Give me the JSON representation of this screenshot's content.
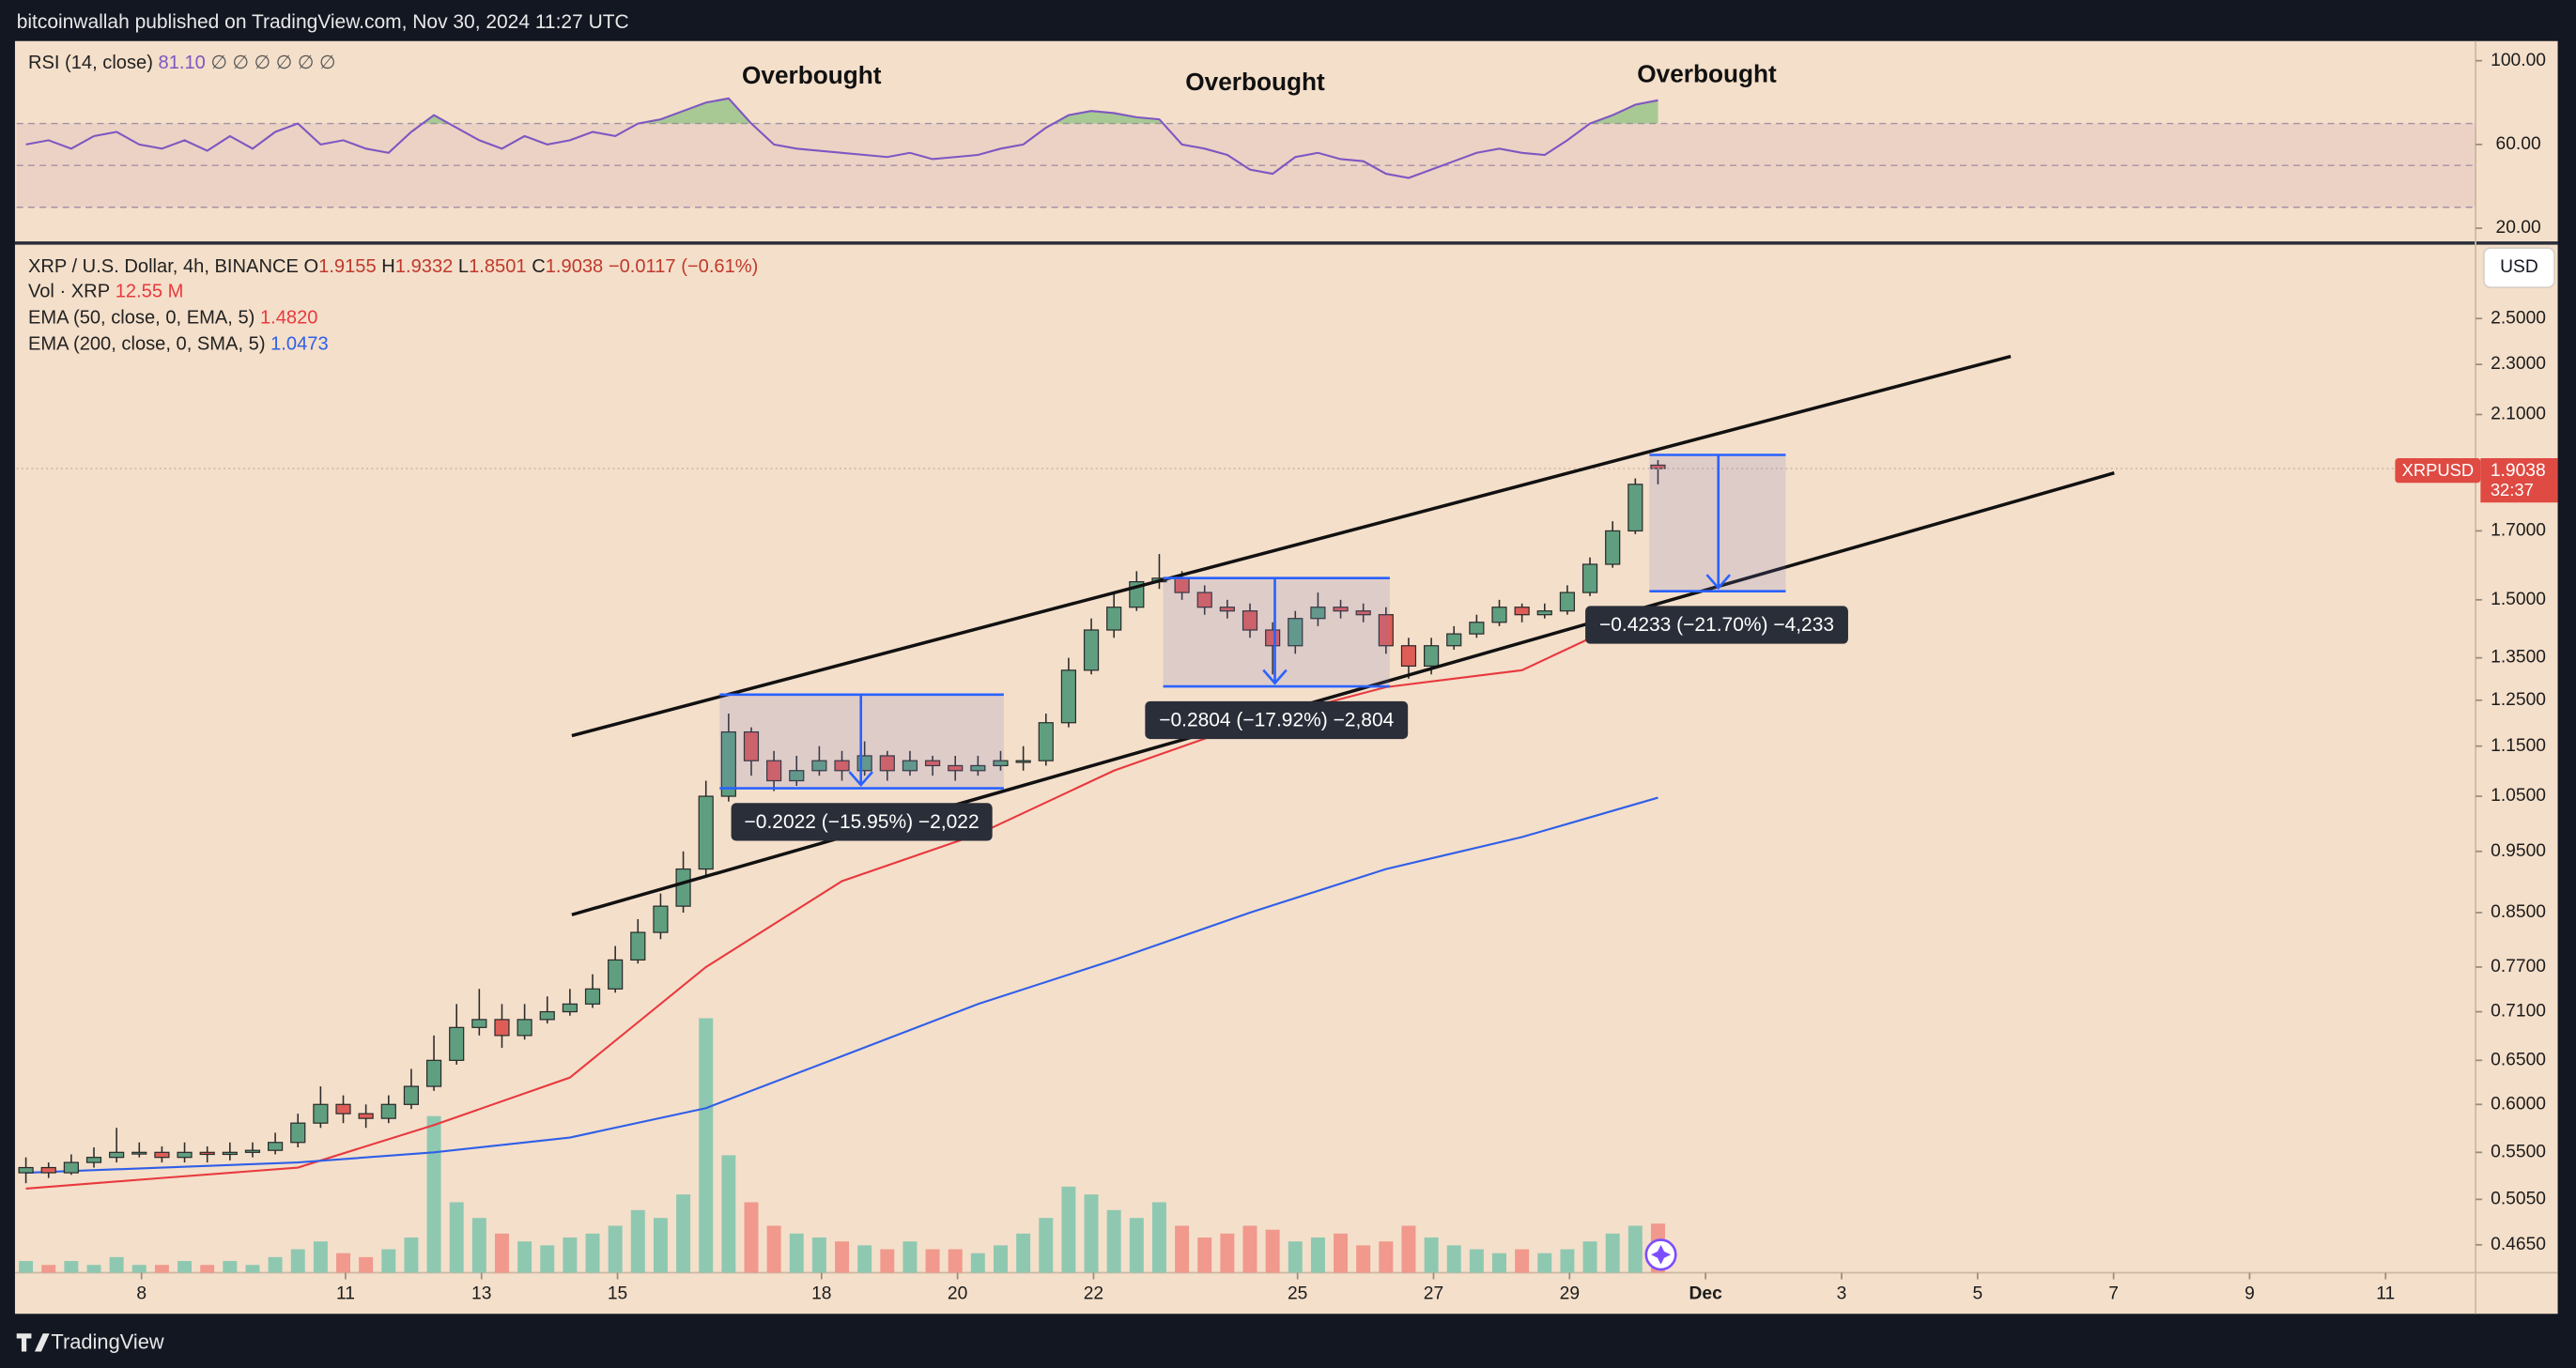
{
  "header": {
    "publisher": "bitcoinwallah published on TradingView.com, Nov 30, 2024 11:27 UTC"
  },
  "footer": {
    "brand": "TradingView"
  },
  "rsi_legend": {
    "name": "RSI (14, close)",
    "value": "81.10",
    "extra": "∅ ∅ ∅ ∅ ∅ ∅"
  },
  "legend": {
    "symbol": "XRP / U.S. Dollar, 4h, BINANCE",
    "ohlc": [
      {
        "k": "O",
        "v": "1.9155"
      },
      {
        "k": "H",
        "v": "1.9332"
      },
      {
        "k": "L",
        "v": "1.8501"
      },
      {
        "k": "C",
        "v": "1.9038"
      }
    ],
    "change": "−0.0117 (−0.61%)",
    "volume": {
      "name": "Vol · XRP",
      "value": "12.55 M"
    },
    "ema50": {
      "name": "EMA (50, close, 0, EMA, 5)",
      "value": "1.4820"
    },
    "ema200": {
      "name": "EMA (200, close, 0, SMA, 5)",
      "value": "1.0473"
    }
  },
  "currency": "USD",
  "price_label": {
    "symbol": "XRPUSD",
    "price": "1.9038",
    "countdown": "32:37"
  },
  "chart_data": [
    {
      "type": "candlestick",
      "open": [
        0.53,
        0.535,
        0.53,
        0.54,
        0.545,
        0.55,
        0.55,
        0.545,
        0.55,
        0.548,
        0.55,
        0.552,
        0.56,
        0.58,
        0.6,
        0.59,
        0.585,
        0.6,
        0.62,
        0.65,
        0.69,
        0.7,
        0.68,
        0.7,
        0.71,
        0.72,
        0.74,
        0.78,
        0.82,
        0.86,
        0.92,
        1.05,
        1.18,
        1.12,
        1.08,
        1.1,
        1.12,
        1.1,
        1.13,
        1.1,
        1.12,
        1.11,
        1.1,
        1.11,
        1.12,
        1.12,
        1.2,
        1.32,
        1.42,
        1.48,
        1.55,
        1.56,
        1.52,
        1.48,
        1.47,
        1.42,
        1.38,
        1.45,
        1.48,
        1.47,
        1.46,
        1.38,
        1.33,
        1.38,
        1.41,
        1.44,
        1.48,
        1.46,
        1.47,
        1.52,
        1.6,
        1.7,
        1.9155
      ],
      "high": [
        0.545,
        0.54,
        0.548,
        0.555,
        0.575,
        0.56,
        0.556,
        0.56,
        0.556,
        0.56,
        0.56,
        0.57,
        0.59,
        0.62,
        0.61,
        0.6,
        0.61,
        0.64,
        0.68,
        0.72,
        0.74,
        0.72,
        0.72,
        0.73,
        0.74,
        0.76,
        0.8,
        0.84,
        0.88,
        0.95,
        1.08,
        1.22,
        1.19,
        1.14,
        1.13,
        1.15,
        1.14,
        1.16,
        1.14,
        1.14,
        1.13,
        1.13,
        1.13,
        1.14,
        1.15,
        1.22,
        1.35,
        1.45,
        1.52,
        1.58,
        1.63,
        1.58,
        1.54,
        1.5,
        1.49,
        1.44,
        1.47,
        1.52,
        1.5,
        1.49,
        1.48,
        1.4,
        1.4,
        1.43,
        1.46,
        1.5,
        1.49,
        1.49,
        1.54,
        1.62,
        1.73,
        1.87,
        1.9332
      ],
      "low": [
        0.52,
        0.525,
        0.528,
        0.535,
        0.54,
        0.545,
        0.54,
        0.54,
        0.54,
        0.542,
        0.545,
        0.548,
        0.555,
        0.575,
        0.58,
        0.575,
        0.58,
        0.595,
        0.615,
        0.645,
        0.68,
        0.665,
        0.675,
        0.695,
        0.705,
        0.715,
        0.735,
        0.775,
        0.81,
        0.85,
        0.91,
        1.04,
        1.09,
        1.06,
        1.07,
        1.09,
        1.08,
        1.09,
        1.08,
        1.09,
        1.09,
        1.08,
        1.09,
        1.1,
        1.1,
        1.11,
        1.19,
        1.31,
        1.4,
        1.47,
        1.53,
        1.5,
        1.46,
        1.45,
        1.4,
        1.31,
        1.36,
        1.43,
        1.45,
        1.44,
        1.36,
        1.3,
        1.31,
        1.37,
        1.4,
        1.43,
        1.44,
        1.45,
        1.46,
        1.51,
        1.59,
        1.69,
        1.8501
      ],
      "close": [
        0.535,
        0.53,
        0.54,
        0.545,
        0.55,
        0.55,
        0.545,
        0.55,
        0.548,
        0.55,
        0.552,
        0.56,
        0.58,
        0.6,
        0.59,
        0.585,
        0.6,
        0.62,
        0.65,
        0.69,
        0.7,
        0.68,
        0.7,
        0.71,
        0.72,
        0.74,
        0.78,
        0.82,
        0.86,
        0.92,
        1.05,
        1.18,
        1.12,
        1.08,
        1.1,
        1.12,
        1.1,
        1.13,
        1.1,
        1.12,
        1.11,
        1.1,
        1.11,
        1.12,
        1.12,
        1.2,
        1.32,
        1.42,
        1.48,
        1.55,
        1.56,
        1.52,
        1.48,
        1.47,
        1.42,
        1.38,
        1.45,
        1.48,
        1.47,
        1.46,
        1.38,
        1.33,
        1.38,
        1.41,
        1.44,
        1.48,
        1.46,
        1.47,
        1.52,
        1.6,
        1.7,
        1.85,
        1.9038
      ],
      "volume": [
        3,
        2,
        3,
        2,
        4,
        2,
        2,
        3,
        2,
        3,
        2,
        4,
        6,
        8,
        5,
        4,
        6,
        9,
        40,
        18,
        14,
        10,
        8,
        7,
        9,
        10,
        12,
        16,
        14,
        20,
        65,
        30,
        18,
        12,
        10,
        9,
        8,
        7,
        6,
        8,
        6,
        6,
        5,
        7,
        10,
        14,
        22,
        20,
        16,
        14,
        18,
        12,
        9,
        10,
        12,
        11,
        8,
        9,
        10,
        7,
        8,
        12,
        9,
        7,
        6,
        5,
        6,
        5,
        6,
        8,
        10,
        12,
        12.55
      ],
      "up_color": "#5f9f80",
      "down_color": "#df5d57",
      "volume_up_color": "#8fc8b1",
      "volume_down_color": "#f0998c",
      "log_scale": true,
      "grid": false,
      "ylim": [
        0.442,
        2.85
      ],
      "yticks": [
        {
          "value": 2.5,
          "label": "2.5000"
        },
        {
          "value": 2.3,
          "label": "2.3000"
        },
        {
          "value": 2.1,
          "label": "2.1000"
        },
        {
          "value": 1.7,
          "label": "1.7000"
        },
        {
          "value": 1.5,
          "label": "1.5000"
        },
        {
          "value": 1.35,
          "label": "1.3500"
        },
        {
          "value": 1.25,
          "label": "1.2500"
        },
        {
          "value": 1.15,
          "label": "1.1500"
        },
        {
          "value": 1.05,
          "label": "1.0500"
        },
        {
          "value": 0.95,
          "label": "0.9500"
        },
        {
          "value": 0.85,
          "label": "0.8500"
        },
        {
          "value": 0.77,
          "label": "0.7700"
        },
        {
          "value": 0.71,
          "label": "0.7100"
        },
        {
          "value": 0.65,
          "label": "0.6500"
        },
        {
          "value": 0.6,
          "label": "0.6000"
        },
        {
          "value": 0.55,
          "label": "0.5500"
        },
        {
          "value": 0.505,
          "label": "0.5050"
        },
        {
          "value": 0.465,
          "label": "0.4650"
        }
      ],
      "xlim": [
        -0.41,
        108.07
      ],
      "xticks": [
        {
          "value": 5.1,
          "label": "8"
        },
        {
          "value": 14.1,
          "label": "11"
        },
        {
          "value": 20.1,
          "label": "13"
        },
        {
          "value": 26.1,
          "label": "15"
        },
        {
          "value": 35.1,
          "label": "18"
        },
        {
          "value": 41.1,
          "label": "20"
        },
        {
          "value": 47.1,
          "label": "22"
        },
        {
          "value": 56.1,
          "label": "25"
        },
        {
          "value": 62.1,
          "label": "27"
        },
        {
          "value": 68.1,
          "label": "29"
        },
        {
          "value": 74.1,
          "label": "Dec"
        },
        {
          "value": 80.1,
          "label": "3"
        },
        {
          "value": 86.1,
          "label": "5"
        },
        {
          "value": 92.1,
          "label": "7"
        },
        {
          "value": 98.1,
          "label": "9"
        },
        {
          "value": 104.1,
          "label": "11"
        }
      ],
      "overlays": [
        {
          "color": "#e8393e",
          "x": [
            0,
            6,
            12,
            18,
            24,
            30,
            36,
            42,
            48,
            54,
            60,
            66,
            72
          ],
          "values": [
            0.515,
            0.525,
            0.535,
            0.578,
            0.63,
            0.77,
            0.9,
            0.98,
            1.1,
            1.2,
            1.28,
            1.32,
            1.482
          ]
        },
        {
          "color": "#2f5fe8",
          "x": [
            0,
            6,
            12,
            18,
            24,
            30,
            36,
            42,
            48,
            54,
            60,
            66,
            72
          ],
          "values": [
            0.53,
            0.535,
            0.54,
            0.55,
            0.565,
            0.596,
            0.655,
            0.72,
            0.78,
            0.85,
            0.92,
            0.975,
            1.0473
          ]
        }
      ],
      "measurements": [
        "−0.2022 (−15.95%) −2,022",
        "−0.2804 (−17.92%) −2,804",
        "−0.4233 (−21.70%) −4,233"
      ]
    },
    {
      "type": "line",
      "color": "#7e57c2",
      "values": [
        60,
        62,
        58,
        64,
        66,
        60,
        58,
        62,
        57,
        64,
        58,
        66,
        70,
        60,
        62,
        58,
        56,
        66,
        74,
        68,
        62,
        58,
        64,
        60,
        62,
        66,
        64,
        70,
        72,
        76,
        80,
        82,
        70,
        60,
        58,
        57,
        56,
        55,
        54,
        56,
        53,
        54,
        55,
        58,
        60,
        68,
        74,
        76,
        75,
        73,
        72,
        60,
        58,
        55,
        48,
        46,
        54,
        56,
        53,
        52,
        46,
        44,
        48,
        52,
        56,
        58,
        56,
        55,
        62,
        70,
        74,
        79,
        81.1
      ],
      "ylim": [
        12.9,
        109.4
      ],
      "yticks": [
        {
          "value": 100,
          "label": "100.00"
        },
        {
          "value": 60,
          "label": "60.00"
        },
        {
          "value": 20,
          "label": "20.00"
        }
      ],
      "levels": [
        70,
        50,
        30
      ],
      "annotations": [
        "Overbought",
        "Overbought",
        "Overbought"
      ]
    }
  ]
}
